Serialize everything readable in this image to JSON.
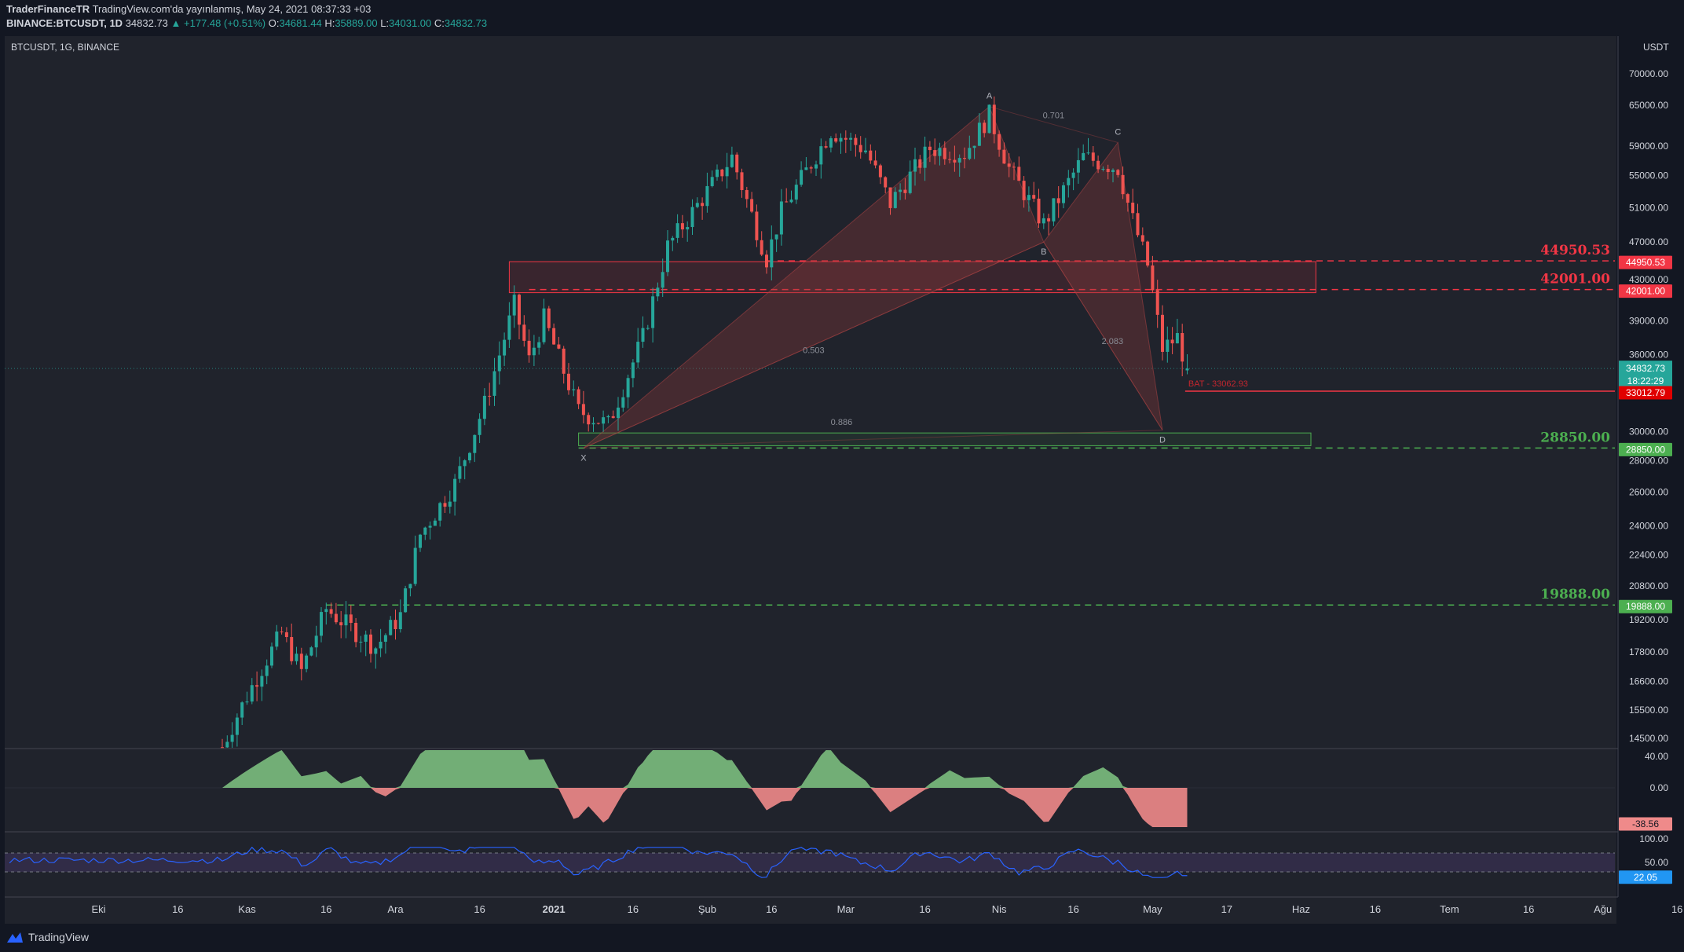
{
  "header": {
    "author": "TraderFinanceTR",
    "published": "TradingView.com'da yayınlanmış, May 24, 2021 08:37:33 +03",
    "symbol": "BINANCE:BTCUSDT, 1D",
    "last": "34832.73",
    "change": "▲ +177.48 (+0.51%)",
    "o_label": "O:",
    "o": "34681.44",
    "h_label": "H:",
    "h": "35889.00",
    "l_label": "L:",
    "l": "34031.00",
    "c_label": "C:",
    "c": "34832.73"
  },
  "pane_title": "BTCUSDT, 1G, BINANCE",
  "currency": "USDT",
  "footer": {
    "brand": "TradingView"
  },
  "colors": {
    "background": "#131722",
    "pane": "#20232c",
    "up": "#26a69a",
    "down": "#ef5350",
    "resistance": "#f23645",
    "support": "#4caf50",
    "pattern": "#8b3a3a"
  },
  "chart_data": [
    {
      "type": "candlestick",
      "title": "BTCUSDT, 1G, BINANCE",
      "scale": "log",
      "ylim": [
        14000,
        72000
      ],
      "y_ticks": [
        "70000.00",
        "65000.00",
        "59000.00",
        "55000.00",
        "51000.00",
        "47000.00",
        "43000.00",
        "39000.00",
        "36000.00",
        "30000.00",
        "28000.00",
        "26000.00",
        "24000.00",
        "22400.00",
        "20800.00",
        "19200.00",
        "17800.00",
        "16600.00",
        "15500.00",
        "14500.00"
      ],
      "x_ticks": [
        "Eki",
        "16",
        "Kas",
        "16",
        "Ara",
        "16",
        "2021",
        "16",
        "Şub",
        "16",
        "Mar",
        "16",
        "Nis",
        "16",
        "May",
        "17",
        "Haz",
        "16",
        "Tem",
        "16",
        "Ağu",
        "16"
      ],
      "series": [
        {
          "name": "BTCUSDT",
          "close_points": [
            [
              "Kas 22",
              18600
            ],
            [
              "Kas 26",
              17000
            ],
            [
              "Ara 1",
              19700
            ],
            [
              "Ara 11",
              18000
            ],
            [
              "Ara 16",
              19400
            ],
            [
              "Ara 20",
              23500
            ],
            [
              "Ara 27",
              26500
            ],
            [
              "Oca 2",
              32000
            ],
            [
              "Oca 8",
              40500
            ],
            [
              "Oca 11",
              35500
            ],
            [
              "Oca 14",
              39200
            ],
            [
              "Oca 21",
              31500
            ],
            [
              "Oca 27",
              30500
            ],
            [
              "Şub 3",
              37500
            ],
            [
              "Şub 8",
              46500
            ],
            [
              "Şub 21",
              57500
            ],
            [
              "Şub 28",
              45200
            ],
            [
              "Mar 3",
              50500
            ],
            [
              "Mar 13",
              61200
            ],
            [
              "Mar 20",
              58500
            ],
            [
              "Mar 25",
              51500
            ],
            [
              "Nis 2",
              58700
            ],
            [
              "Nis 9",
              58000
            ],
            [
              "Nis 14",
              63500
            ],
            [
              "Nis 18",
              56000
            ],
            [
              "Nis 25",
              49000
            ],
            [
              "May 3",
              57500
            ],
            [
              "May 10",
              56000
            ],
            [
              "May 13",
              49500
            ],
            [
              "May 16",
              44500
            ],
            [
              "May 19",
              36500
            ],
            [
              "May 22",
              37500
            ],
            [
              "May 24",
              34832.73
            ]
          ]
        }
      ],
      "price_labels": [
        {
          "value": "44950.53",
          "role": "resistance"
        },
        {
          "value": "42001.00",
          "role": "resistance"
        },
        {
          "value": "34832.73",
          "role": "last",
          "countdown": "18:22:29"
        },
        {
          "value": "33012.79",
          "role": "pattern"
        },
        {
          "value": "28850.00",
          "role": "support"
        },
        {
          "value": "19888.00",
          "role": "support"
        }
      ],
      "level_texts": [
        "44950.53",
        "42001.00",
        "28850.00",
        "19888.00"
      ],
      "harmonic_pattern": {
        "name": "BAT",
        "target_label": "BAT - 33062.93",
        "points": [
          {
            "label": "X",
            "date": "Oca 22",
            "price": 28850
          },
          {
            "label": "A",
            "date": "Nis 14",
            "price": 64800
          },
          {
            "label": "B",
            "date": "Nis 25",
            "price": 47000
          },
          {
            "label": "C",
            "date": "May 10",
            "price": 59500
          },
          {
            "label": "D",
            "date": "May 19",
            "price": 30100
          }
        ],
        "ratios": [
          "0.701",
          "0.503",
          "2.083",
          "0.886"
        ]
      }
    },
    {
      "type": "area",
      "name": "Oscillator",
      "y_ticks": [
        "40.00",
        "0.00"
      ],
      "last_value": "-38.56"
    },
    {
      "type": "line",
      "name": "RSI",
      "y_ticks": [
        "100.00",
        "50.00"
      ],
      "bands": [
        70,
        30
      ],
      "last_value": "22.05"
    }
  ]
}
